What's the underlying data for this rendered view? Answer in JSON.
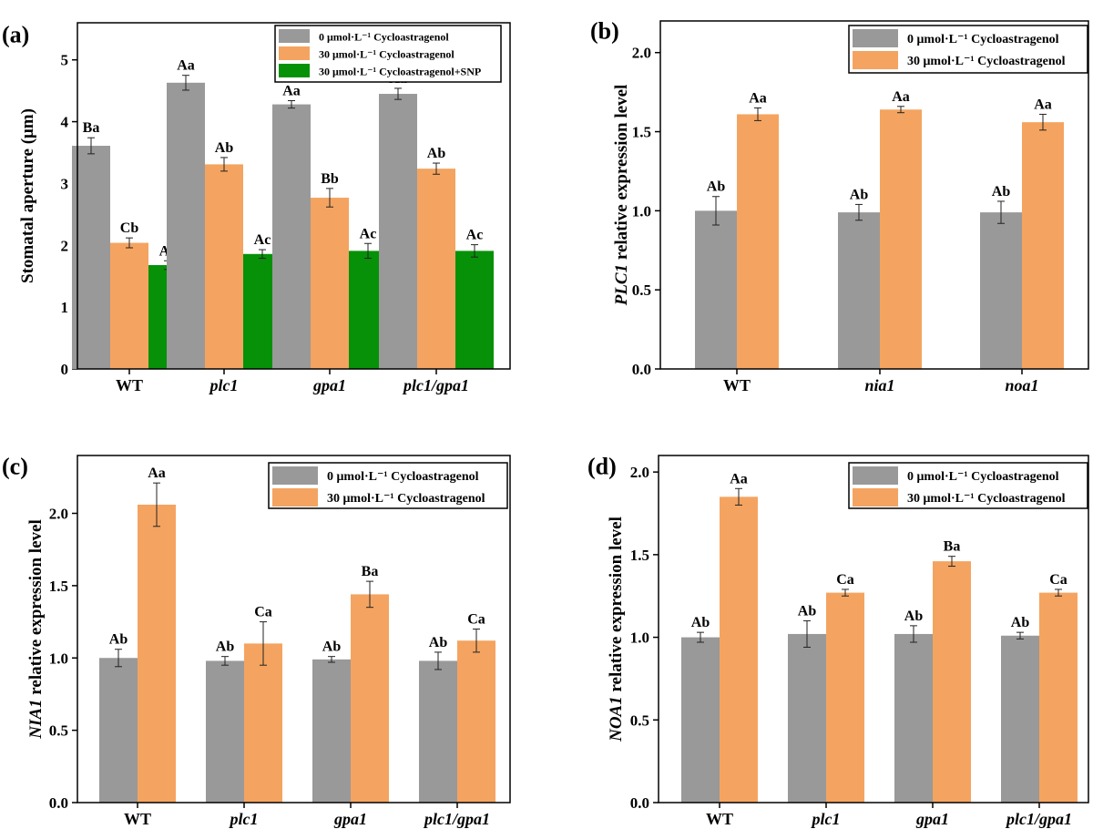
{
  "colors": {
    "gray": "#999999",
    "orange": "#F4A460",
    "green": "#069108"
  },
  "chart_data": [
    {
      "type": "bar",
      "panel_label": "(a)",
      "ylabel": "Stomatal aperture (μm)",
      "ylim": [
        0,
        5.6
      ],
      "yticks": [
        0,
        1,
        2,
        3,
        4,
        5
      ],
      "categories": [
        "WT",
        "plc1",
        "gpa1",
        "plc1/gpa1"
      ],
      "italic_categories": [
        false,
        true,
        true,
        true
      ],
      "legend_position": "top-right",
      "series": [
        {
          "name": "0 μmol·L⁻¹  Cycloastragenol",
          "color": "gray",
          "values": [
            3.61,
            4.63,
            4.28,
            4.45
          ],
          "errors": [
            0.13,
            0.12,
            0.06,
            0.09
          ],
          "labels": [
            "Ba",
            "Aa",
            "Aa",
            "Aa"
          ]
        },
        {
          "name": "30 μmol·L⁻¹  Cycloastragenol",
          "color": "orange",
          "values": [
            2.04,
            3.31,
            2.77,
            3.24
          ],
          "errors": [
            0.08,
            0.11,
            0.15,
            0.09
          ],
          "labels": [
            "Cb",
            "Ab",
            "Bb",
            "Ab"
          ]
        },
        {
          "name": "30 μmol·L⁻¹  Cycloastragenol+SNP",
          "color": "green",
          "values": [
            1.68,
            1.86,
            1.91,
            1.91
          ],
          "errors": [
            0.07,
            0.07,
            0.12,
            0.1
          ],
          "labels": [
            "Ac",
            "Ac",
            "Ac",
            "Ac"
          ]
        }
      ]
    },
    {
      "type": "bar",
      "panel_label": "(b)",
      "ylabel_italic": "PLC1",
      "ylabel_rest": " relative expression level",
      "ylim": [
        0,
        2.2
      ],
      "yticks": [
        0.0,
        0.5,
        1.0,
        1.5,
        2.0
      ],
      "categories": [
        "WT",
        "nia1",
        "noa1"
      ],
      "italic_categories": [
        false,
        true,
        true
      ],
      "legend_position": "top-right",
      "series": [
        {
          "name": "0 μmol·L⁻¹ Cycloastragenol",
          "color": "gray",
          "values": [
            1.0,
            0.99,
            0.99
          ],
          "errors": [
            0.09,
            0.05,
            0.07
          ],
          "labels": [
            "Ab",
            "Ab",
            "Ab"
          ]
        },
        {
          "name": "30 μmol·L⁻¹ Cycloastragenol",
          "color": "orange",
          "values": [
            1.61,
            1.64,
            1.56
          ],
          "errors": [
            0.04,
            0.02,
            0.05
          ],
          "labels": [
            "Aa",
            "Aa",
            "Aa"
          ]
        }
      ]
    },
    {
      "type": "bar",
      "panel_label": "(c)",
      "ylabel_italic": "NIA1",
      "ylabel_rest": " relative expression level",
      "ylim": [
        0,
        2.4
      ],
      "yticks": [
        0.0,
        0.5,
        1.0,
        1.5,
        2.0
      ],
      "categories": [
        "WT",
        "plc1",
        "gpa1",
        "plc1/gpa1"
      ],
      "italic_categories": [
        false,
        true,
        true,
        true
      ],
      "legend_position": "top-right",
      "series": [
        {
          "name": "0 μmol·L⁻¹ Cycloastragenol",
          "color": "gray",
          "values": [
            1.0,
            0.98,
            0.99,
            0.98
          ],
          "errors": [
            0.06,
            0.03,
            0.02,
            0.06
          ],
          "labels": [
            "Ab",
            "Ab",
            "Ab",
            "Ab"
          ]
        },
        {
          "name": "30 μmol·L⁻¹ Cycloastragenol",
          "color": "orange",
          "values": [
            2.06,
            1.1,
            1.44,
            1.12
          ],
          "errors": [
            0.15,
            0.15,
            0.09,
            0.08
          ],
          "labels": [
            "Aa",
            "Ca",
            "Ba",
            "Ca"
          ]
        }
      ]
    },
    {
      "type": "bar",
      "panel_label": "(d)",
      "ylabel_italic": "NOA1",
      "ylabel_rest": " relative expression level",
      "ylim": [
        0,
        2.1
      ],
      "yticks": [
        0.0,
        0.5,
        1.0,
        1.5,
        2.0
      ],
      "categories": [
        "WT",
        "plc1",
        "gpa1",
        "plc1/gpa1"
      ],
      "italic_categories": [
        false,
        true,
        true,
        true
      ],
      "legend_position": "top-right",
      "series": [
        {
          "name": "0 μmol·L⁻¹ Cycloastragenol",
          "color": "gray",
          "values": [
            1.0,
            1.02,
            1.02,
            1.01
          ],
          "errors": [
            0.03,
            0.08,
            0.05,
            0.02
          ],
          "labels": [
            "Ab",
            "Ab",
            "Ab",
            "Ab"
          ]
        },
        {
          "name": "30 μmol·L⁻¹ Cycloastragenol",
          "color": "orange",
          "values": [
            1.85,
            1.27,
            1.46,
            1.27
          ],
          "errors": [
            0.05,
            0.02,
            0.03,
            0.02
          ],
          "labels": [
            "Aa",
            "Ca",
            "Ba",
            "Ca"
          ]
        }
      ]
    }
  ]
}
